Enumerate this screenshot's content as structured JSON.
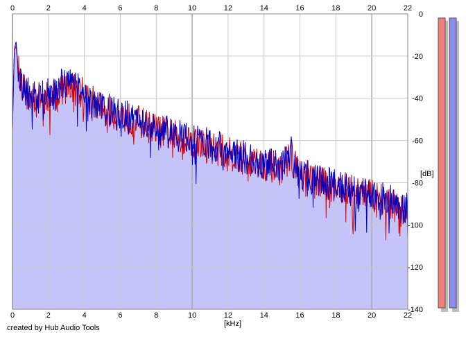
{
  "credit": "created by Hub Audio Tools",
  "chart_data": {
    "type": "area",
    "xlabel": "[kHz]",
    "ylabel": "[dB]",
    "xlim": [
      0,
      22
    ],
    "ylim": [
      -140,
      0
    ],
    "x_ticks": [
      0,
      2,
      4,
      6,
      8,
      10,
      12,
      14,
      16,
      18,
      20,
      22
    ],
    "y_ticks": [
      0,
      -20,
      -40,
      -60,
      -80,
      -100,
      -120,
      -140
    ],
    "y_tick_labels": [
      "0",
      "-20",
      "-40",
      "-60",
      "-80",
      "-100",
      "-120",
      "-140"
    ],
    "grid": true,
    "colors": {
      "background": "#ffffff",
      "fill": "#c4c4fa",
      "grid_major": "#aaaaaa",
      "grid_minor": "#c8c8c8",
      "left_meter": "#f08080",
      "right_meter": "#8c8cf0"
    },
    "series": [
      {
        "color": "#e00000",
        "x": [
          0,
          0.1,
          0.2,
          0.3,
          0.5,
          0.8,
          1,
          1.5,
          2,
          2.5,
          3,
          3.5,
          4,
          4.5,
          5,
          5.5,
          6,
          6.5,
          7,
          7.5,
          8,
          9,
          10,
          11,
          12,
          13,
          14,
          15,
          15.5,
          15.7,
          16,
          17,
          18,
          19,
          20,
          21,
          21.5,
          22
        ],
        "values": [
          -55,
          -18,
          -15,
          -25,
          -33,
          -38,
          -40,
          -40,
          -40,
          -37,
          -34,
          -35,
          -38,
          -42,
          -45,
          -47,
          -48,
          -50,
          -51,
          -53,
          -55,
          -58,
          -60,
          -63,
          -66,
          -69,
          -71,
          -74,
          -66,
          -72,
          -76,
          -79,
          -82,
          -84,
          -86,
          -89,
          -93,
          -94
        ]
      },
      {
        "color": "#0000c8",
        "x": [
          0,
          0.1,
          0.2,
          0.3,
          0.5,
          0.8,
          1,
          1.5,
          2,
          2.5,
          3,
          3.5,
          4,
          4.5,
          5,
          5.5,
          6,
          6.5,
          7,
          7.5,
          8,
          9,
          10,
          11,
          12,
          13,
          14,
          15,
          15.5,
          15.7,
          16,
          17,
          18,
          19,
          20,
          21,
          21.5,
          22
        ],
        "values": [
          -55,
          -17,
          -13,
          -24,
          -32,
          -37,
          -39,
          -40,
          -38,
          -35,
          -32,
          -33,
          -36,
          -41,
          -44,
          -46,
          -48,
          -49,
          -51,
          -52,
          -54,
          -57,
          -60,
          -62,
          -65,
          -68,
          -71,
          -73,
          -62,
          -71,
          -75,
          -79,
          -81,
          -84,
          -86,
          -88,
          -91,
          -93
        ]
      }
    ],
    "meters": {
      "left": "red",
      "right": "blue"
    }
  }
}
